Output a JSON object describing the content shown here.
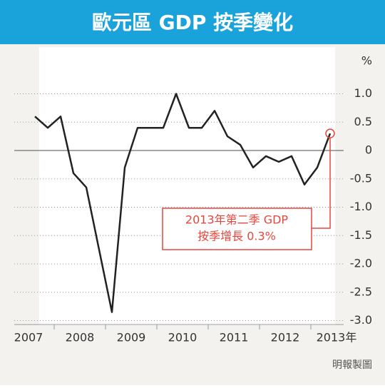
{
  "chart_data": {
    "type": "line",
    "title": "歐元區 GDP 按季變化",
    "y_unit": "%",
    "x": [
      2007.625,
      2007.875,
      2008.125,
      2008.375,
      2008.625,
      2008.875,
      2009.125,
      2009.375,
      2009.625,
      2009.875,
      2010.125,
      2010.375,
      2010.625,
      2010.875,
      2011.125,
      2011.375,
      2011.625,
      2011.875,
      2012.125,
      2012.375,
      2012.625,
      2012.875,
      2013.125,
      2013.375
    ],
    "values": [
      0.6,
      0.4,
      0.6,
      -0.4,
      -0.65,
      -1.75,
      -2.85,
      -0.3,
      0.4,
      0.4,
      0.4,
      1.0,
      0.4,
      0.4,
      0.7,
      0.25,
      0.1,
      -0.3,
      -0.1,
      -0.2,
      -0.1,
      -0.6,
      -0.3,
      0.3
    ],
    "color": "#222222",
    "xlim": [
      2007,
      2014
    ],
    "xticks": [
      {
        "value": 2007,
        "label": "2007"
      },
      {
        "value": 2008,
        "label": "2008"
      },
      {
        "value": 2009,
        "label": "2009"
      },
      {
        "value": 2010,
        "label": "2010"
      },
      {
        "value": 2011,
        "label": "2011"
      },
      {
        "value": 2012,
        "label": "2012"
      },
      {
        "value": 2013,
        "label": "2013年"
      }
    ],
    "ylim": [
      -3.2,
      1.5
    ],
    "yticks": [
      {
        "value": 1,
        "label": "1.0"
      },
      0.5,
      0,
      -0.5,
      {
        "value": -1,
        "label": "-1.0"
      },
      -1.5,
      {
        "value": -2,
        "label": "-2.0"
      },
      -2.5,
      {
        "value": -3,
        "label": "-3.0"
      }
    ],
    "grid": true,
    "annotation": {
      "lines": [
        "2013年第二季 GDP",
        "按季增長 0.3%"
      ],
      "color": "#e8453c"
    },
    "source": "明報製圖"
  }
}
